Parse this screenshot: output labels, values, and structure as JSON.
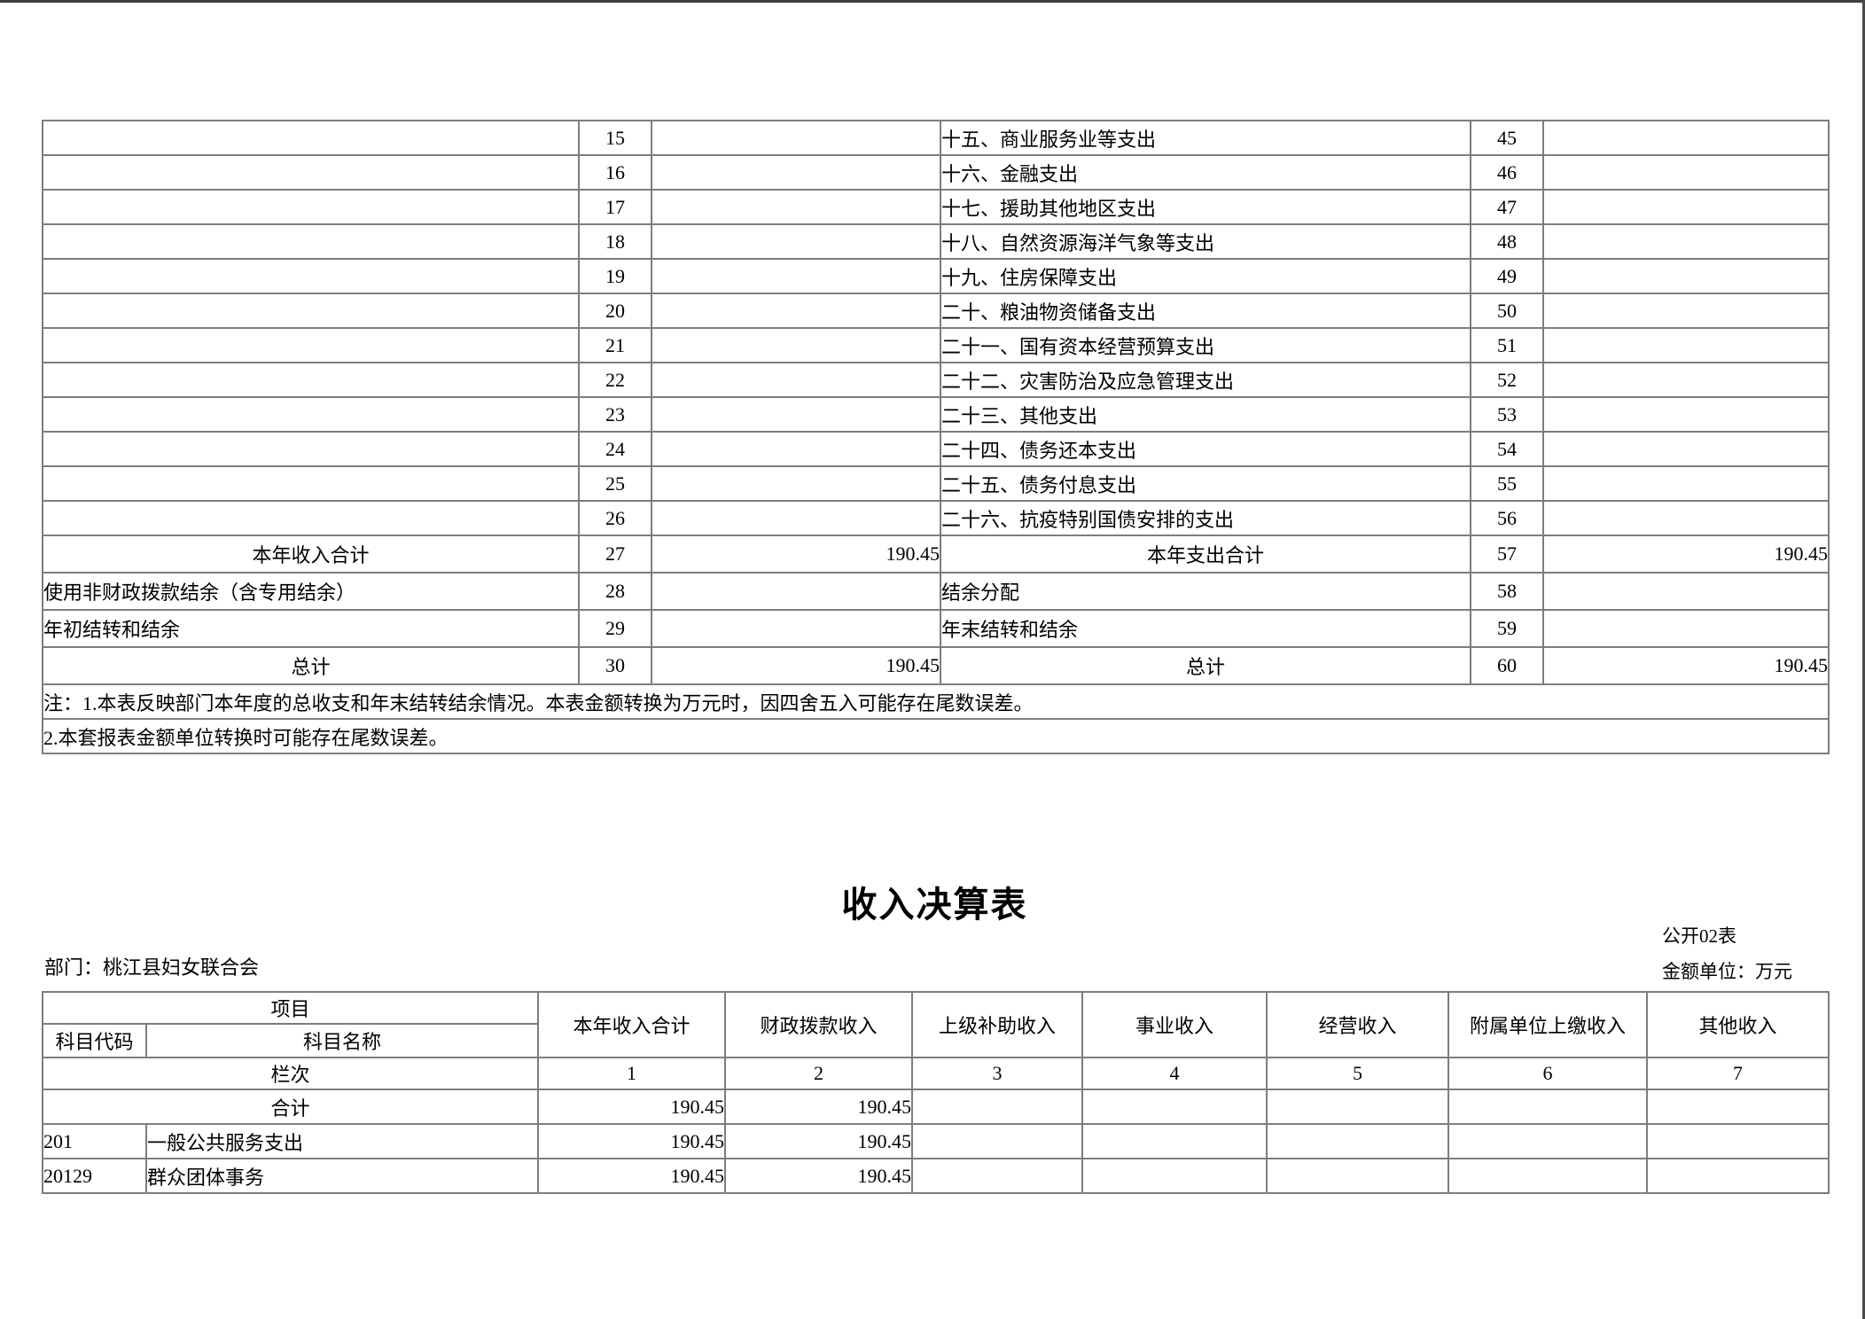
{
  "page": {
    "title": "收入决算表",
    "form_code": "公开02表",
    "unit_note": "金额单位：万元",
    "department": "部门：桃江县妇女联合会"
  },
  "summary_table": {
    "item_rows": [
      {
        "income_label": "",
        "income_no": "15",
        "income_amount": "",
        "expense_label": "十五、商业服务业等支出",
        "expense_no": "45",
        "expense_amount": ""
      },
      {
        "income_label": "",
        "income_no": "16",
        "income_amount": "",
        "expense_label": "十六、金融支出",
        "expense_no": "46",
        "expense_amount": ""
      },
      {
        "income_label": "",
        "income_no": "17",
        "income_amount": "",
        "expense_label": "十七、援助其他地区支出",
        "expense_no": "47",
        "expense_amount": ""
      },
      {
        "income_label": "",
        "income_no": "18",
        "income_amount": "",
        "expense_label": "十八、自然资源海洋气象等支出",
        "expense_no": "48",
        "expense_amount": ""
      },
      {
        "income_label": "",
        "income_no": "19",
        "income_amount": "",
        "expense_label": "十九、住房保障支出",
        "expense_no": "49",
        "expense_amount": ""
      },
      {
        "income_label": "",
        "income_no": "20",
        "income_amount": "",
        "expense_label": "二十、粮油物资储备支出",
        "expense_no": "50",
        "expense_amount": ""
      },
      {
        "income_label": "",
        "income_no": "21",
        "income_amount": "",
        "expense_label": "二十一、国有资本经营预算支出",
        "expense_no": "51",
        "expense_amount": ""
      },
      {
        "income_label": "",
        "income_no": "22",
        "income_amount": "",
        "expense_label": "二十二、灾害防治及应急管理支出",
        "expense_no": "52",
        "expense_amount": ""
      },
      {
        "income_label": "",
        "income_no": "23",
        "income_amount": "",
        "expense_label": "二十三、其他支出",
        "expense_no": "53",
        "expense_amount": ""
      },
      {
        "income_label": "",
        "income_no": "24",
        "income_amount": "",
        "expense_label": "二十四、债务还本支出",
        "expense_no": "54",
        "expense_amount": ""
      },
      {
        "income_label": "",
        "income_no": "25",
        "income_amount": "",
        "expense_label": "二十五、债务付息支出",
        "expense_no": "55",
        "expense_amount": ""
      },
      {
        "income_label": "",
        "income_no": "26",
        "income_amount": "",
        "expense_label": "二十六、抗疫特别国债安排的支出",
        "expense_no": "56",
        "expense_amount": ""
      }
    ],
    "total_rows": [
      {
        "left_label": "本年收入合计",
        "left_bold": true,
        "left_no": "27",
        "left_amount": "190.45",
        "right_label": "本年支出合计",
        "right_bold": true,
        "right_no": "57",
        "right_amount": "190.45"
      },
      {
        "left_label": "使用非财政拨款结余（含专用结余）",
        "left_bold": false,
        "left_no": "28",
        "left_amount": "",
        "right_label": "结余分配",
        "right_bold": false,
        "right_no": "58",
        "right_amount": ""
      },
      {
        "left_label": "年初结转和结余",
        "left_bold": false,
        "left_no": "29",
        "left_amount": "",
        "right_label": "年末结转和结余",
        "right_bold": false,
        "right_no": "59",
        "right_amount": ""
      },
      {
        "left_label": "总计",
        "left_bold": true,
        "left_no": "30",
        "left_amount": "190.45",
        "right_label": "总计",
        "right_bold": true,
        "right_no": "60",
        "right_amount": "190.45"
      }
    ],
    "notes": [
      "注：1.本表反映部门本年度的总收支和年末结转结余情况。本表金额转换为万元时，因四舍五入可能存在尾数误差。",
      "2.本套报表金额单位转换时可能存在尾数误差。"
    ]
  },
  "income_table": {
    "header": {
      "project": "项目",
      "code": "科目代码",
      "name": "科目名称",
      "columns": [
        "本年收入合计",
        "财政拨款收入",
        "上级补助收入",
        "事业收入",
        "经营收入",
        "附属单位上缴收入",
        "其他收入"
      ]
    },
    "column_index_label": "栏次",
    "column_indexes": [
      "1",
      "2",
      "3",
      "4",
      "5",
      "6",
      "7"
    ],
    "rows": [
      {
        "code": "",
        "name": "合计",
        "merged": true,
        "bold_values": true,
        "values": [
          "190.45",
          "190.45",
          "",
          "",
          "",
          "",
          ""
        ]
      },
      {
        "code": "201",
        "name": "一般公共服务支出",
        "merged": false,
        "bold_values": false,
        "values": [
          "190.45",
          "190.45",
          "",
          "",
          "",
          "",
          ""
        ]
      },
      {
        "code": "20129",
        "name": "群众团体事务",
        "merged": false,
        "bold_values": false,
        "values": [
          "190.45",
          "190.45",
          "",
          "",
          "",
          "",
          ""
        ]
      }
    ]
  }
}
